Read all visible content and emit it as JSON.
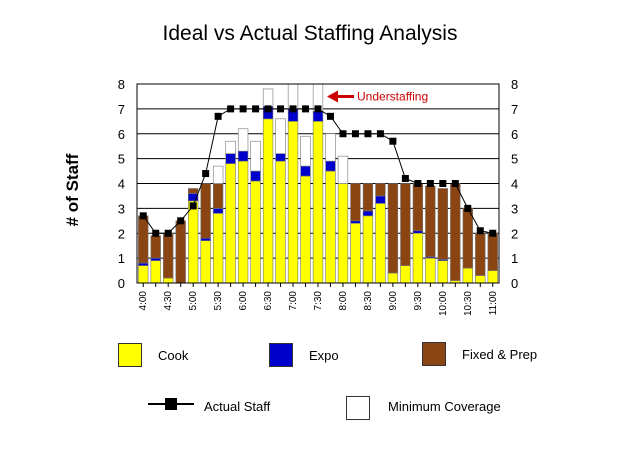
{
  "chart_data": {
    "type": "bar",
    "title": "Ideal vs Actual Staffing Analysis",
    "ylabel": "# of Staff",
    "ylim": [
      0,
      8
    ],
    "yticks": [
      "0",
      "1",
      "2",
      "3",
      "4",
      "5",
      "6",
      "7",
      "8"
    ],
    "x": [
      "4:00",
      "4:15",
      "4:30",
      "4:45",
      "5:00",
      "5:15",
      "5:30",
      "5:45",
      "6:00",
      "6:15",
      "6:30",
      "6:45",
      "7:00",
      "7:15",
      "7:30",
      "7:45",
      "8:00",
      "8:15",
      "8:30",
      "8:45",
      "9:00",
      "9:15",
      "9:30",
      "9:45",
      "10:00",
      "10:15",
      "10:30",
      "10:45",
      "11:00"
    ],
    "xtick_labels": [
      "4:00",
      "",
      "4:30",
      "",
      "5:00",
      "",
      "5:30",
      "",
      "6:00",
      "",
      "6:30",
      "",
      "7:00",
      "",
      "7:30",
      "",
      "8:00",
      "",
      "8:30",
      "",
      "9:00",
      "",
      "9:30",
      "",
      "10:00",
      "",
      "10:30",
      "",
      "11:00"
    ],
    "series": [
      {
        "name": "Cook",
        "kind": "stacked-bar",
        "color": "#ffff00",
        "values": [
          0.7,
          0.9,
          0.2,
          0.0,
          3.3,
          1.7,
          2.8,
          4.8,
          4.9,
          4.1,
          6.6,
          4.9,
          6.5,
          4.3,
          6.5,
          4.5,
          4.0,
          2.4,
          2.7,
          3.2,
          0.4,
          0.7,
          2.0,
          1.0,
          0.9,
          0.1,
          0.6,
          0.3,
          0.5
        ]
      },
      {
        "name": "Expo",
        "kind": "stacked-bar",
        "color": "#0000cc",
        "values": [
          0.1,
          0.1,
          0.0,
          0.0,
          0.3,
          0.1,
          0.2,
          0.4,
          0.4,
          0.4,
          0.5,
          0.3,
          0.5,
          0.4,
          0.4,
          0.4,
          0.0,
          0.1,
          0.2,
          0.3,
          0.0,
          0.0,
          0.1,
          0.05,
          0.05,
          0.0,
          0.0,
          0.0,
          0.0
        ]
      },
      {
        "name": "Fixed & Prep",
        "kind": "stacked-bar",
        "color": "#8b4513",
        "values": [
          1.9,
          0.9,
          1.8,
          2.5,
          0.2,
          2.2,
          1.0,
          0.0,
          0.0,
          0.0,
          0.0,
          0.0,
          0.0,
          0.0,
          0.0,
          0.0,
          0.0,
          1.5,
          1.1,
          0.5,
          3.6,
          3.3,
          1.9,
          2.85,
          2.85,
          3.9,
          2.4,
          1.7,
          1.5
        ]
      },
      {
        "name": "Minimum Coverage",
        "kind": "stacked-bar",
        "color": "#ffffff",
        "values": [
          0.0,
          0.0,
          0.0,
          0.0,
          0.0,
          0.0,
          0.7,
          0.5,
          0.9,
          1.2,
          0.7,
          1.4,
          1.0,
          1.2,
          1.1,
          1.1,
          1.1,
          0.0,
          0.0,
          0.0,
          0.0,
          0.0,
          0.0,
          0.0,
          0.0,
          0.0,
          0.0,
          0.0,
          0.0
        ]
      },
      {
        "name": "Actual Staff",
        "kind": "line",
        "color": "#000000",
        "values": [
          2.7,
          2.0,
          2.0,
          2.5,
          3.1,
          4.4,
          6.7,
          7.0,
          7.0,
          7.0,
          7.0,
          7.0,
          7.0,
          7.0,
          7.0,
          6.7,
          6.0,
          6.0,
          6.0,
          6.0,
          5.7,
          4.2,
          4.0,
          4.0,
          4.0,
          4.0,
          3.0,
          2.1,
          2.0
        ]
      }
    ],
    "annotations": [
      {
        "text": "Understaffing",
        "color": "#cc0000"
      }
    ],
    "legend_position": "bottom",
    "grid": true
  },
  "legend": [
    {
      "label": "Cook",
      "color": "#ffff00"
    },
    {
      "label": "Expo",
      "color": "#0000cc"
    },
    {
      "label": "Fixed & Prep",
      "color": "#8b4513"
    },
    {
      "label": "Actual Staff",
      "color": "#000000"
    },
    {
      "label": "Minimum Coverage",
      "color": "#ffffff"
    }
  ]
}
